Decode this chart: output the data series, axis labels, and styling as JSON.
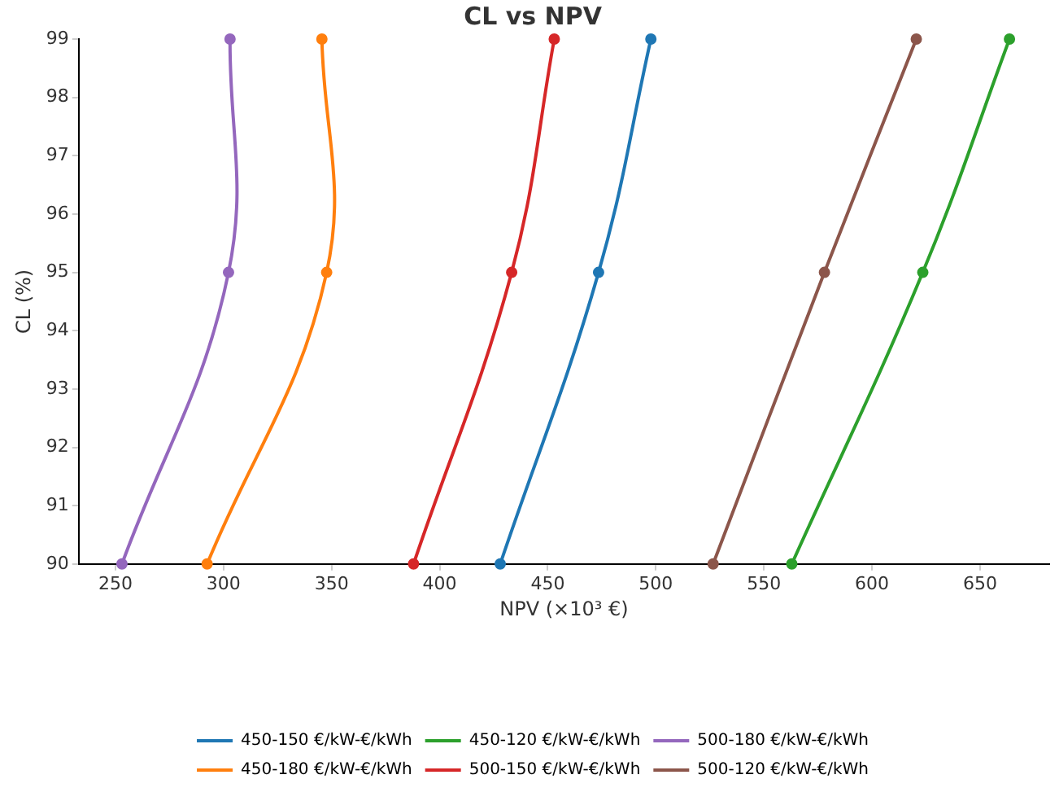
{
  "chart_data": {
    "type": "line",
    "title": "CL vs NPV",
    "xlabel": "NPV (×10³ €)",
    "ylabel": "CL (%)",
    "xlim": [
      233,
      682
    ],
    "xticks": [
      250,
      300,
      350,
      400,
      450,
      500,
      550,
      600,
      650
    ],
    "ylim": [
      90,
      99
    ],
    "yticks": [
      90,
      91,
      92,
      93,
      94,
      95,
      96,
      97,
      98,
      99
    ],
    "grid": false,
    "legend": "bottom",
    "marker": "circle",
    "line_style": "solid",
    "series": [
      {
        "name": "450-150 €/kW-€/kWh",
        "color": "#1f77b4",
        "x": [
          428,
          473.5,
          497.7
        ],
        "values": [
          90,
          95,
          99
        ]
      },
      {
        "name": "450-180 €/kW-€/kWh",
        "color": "#ff7f0e",
        "x": [
          292.4,
          347.7,
          345.5
        ],
        "values": [
          90,
          95,
          99
        ]
      },
      {
        "name": "450-120 €/kW-€/kWh",
        "color": "#2ca02c",
        "x": [
          562.9,
          623.5,
          663.6
        ],
        "values": [
          90,
          95,
          99
        ]
      },
      {
        "name": "500-150 €/kW-€/kWh",
        "color": "#d62728",
        "x": [
          387.9,
          433.3,
          453
        ],
        "values": [
          90,
          95,
          99
        ]
      },
      {
        "name": "500-180 €/kW-€/kWh",
        "color": "#9467bd",
        "x": [
          253,
          302.3,
          303
        ],
        "values": [
          90,
          95,
          99
        ]
      },
      {
        "name": "500-120 €/kW-€/kWh",
        "color": "#8c564b",
        "x": [
          526.5,
          578,
          620.5
        ],
        "values": [
          90,
          95,
          99
        ]
      }
    ]
  }
}
